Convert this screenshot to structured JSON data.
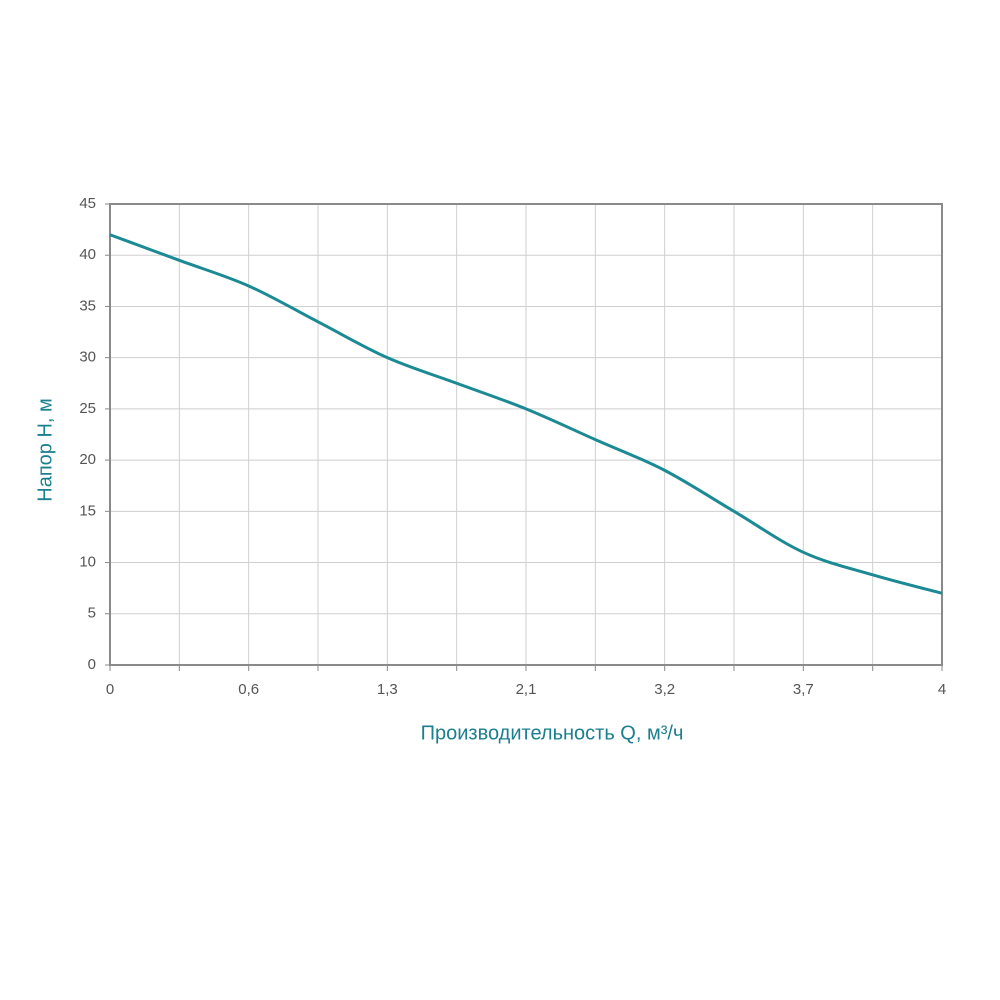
{
  "chart_data": {
    "type": "line",
    "x_label": "Производительность Q, м³/ч",
    "y_label": "Напор H, м",
    "categories": [
      "0",
      null,
      "0,6",
      null,
      "1,3",
      null,
      "2,1",
      null,
      "3,2",
      null,
      "3,7",
      null,
      "4"
    ],
    "values": [
      42,
      39.5,
      37,
      33.5,
      30,
      27.5,
      25,
      22,
      19,
      15,
      11,
      8.8,
      7
    ],
    "color": "#1b8a94",
    "ylim": [
      0,
      45
    ],
    "yticks": [
      0,
      5,
      10,
      15,
      20,
      25,
      30,
      35,
      40,
      45
    ],
    "grid": true
  }
}
